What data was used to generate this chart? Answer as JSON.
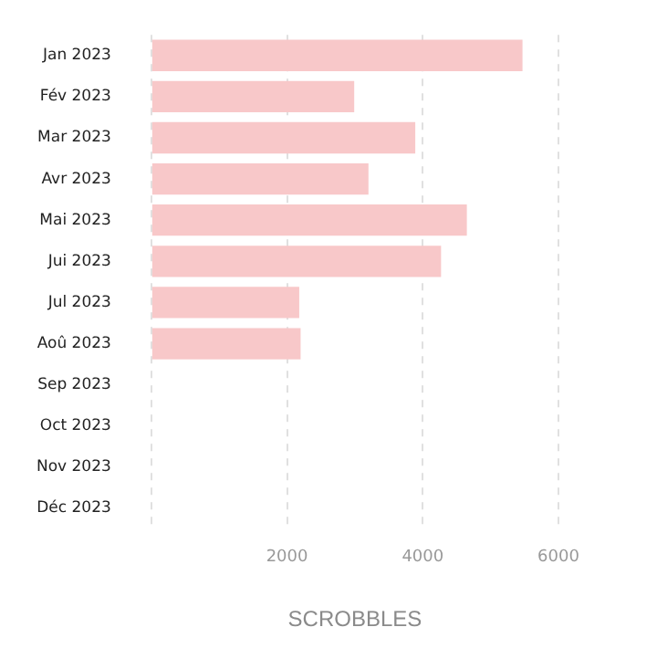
{
  "chart_data": {
    "type": "bar",
    "orientation": "horizontal",
    "xlabel": "SCROBBLES",
    "categories": [
      "Jan 2023",
      "Fév 2023",
      "Mar 2023",
      "Avr 2023",
      "Mai 2023",
      "Jui 2023",
      "Jul 2023",
      "Aoû 2023",
      "Sep 2023",
      "Oct 2023",
      "Nov 2023",
      "Déc 2023"
    ],
    "values": [
      5470,
      2990,
      3890,
      3200,
      4650,
      4270,
      2180,
      2200,
      0,
      0,
      0,
      0
    ],
    "color": "#f8c8c9",
    "xlim": [
      0,
      6000
    ],
    "xticks": [
      {
        "value": 0,
        "label": null
      },
      2000,
      4000,
      6000
    ],
    "grid": "x"
  }
}
